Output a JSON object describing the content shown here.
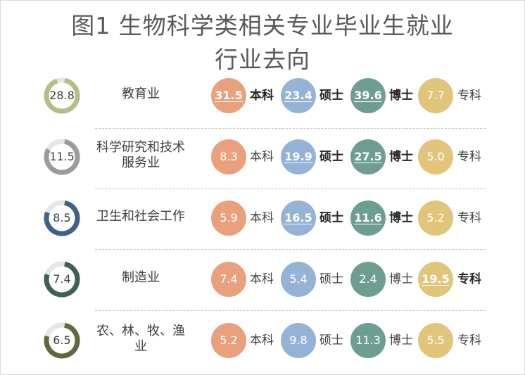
{
  "title_line1": "图1 生物科学类相关专业毕业生就业",
  "title_line2": "行业去向",
  "chart_data": {
    "type": "table",
    "title": "图1 生物科学类相关专业毕业生就业行业去向",
    "degree_labels": [
      "本科",
      "硕士",
      "博士",
      "专科"
    ],
    "degree_colors": [
      "#e8a17c",
      "#95b3d6",
      "#6e9e91",
      "#e0c57a"
    ],
    "rows": [
      {
        "industry": "教育业",
        "overall": 28.8,
        "ring_color": "#b4bf86",
        "values": [
          31.5,
          23.4,
          39.6,
          7.7
        ],
        "highlight": [
          true,
          true,
          true,
          false
        ]
      },
      {
        "industry": "科学研究和技术服务业",
        "overall": 11.5,
        "ring_color": "#9e9a9c",
        "values": [
          8.3,
          19.9,
          27.5,
          5.0
        ],
        "highlight": [
          false,
          true,
          true,
          false
        ]
      },
      {
        "industry": "卫生和社会工作",
        "overall": 8.5,
        "ring_color": "#416287",
        "values": [
          5.9,
          16.5,
          11.6,
          5.2
        ],
        "highlight": [
          false,
          true,
          true,
          false
        ]
      },
      {
        "industry": "制造业",
        "overall": 7.4,
        "ring_color": "#3f5f58",
        "values": [
          7.4,
          5.4,
          2.4,
          19.5
        ],
        "highlight": [
          false,
          false,
          false,
          true
        ]
      },
      {
        "industry": "农、林、牧、渔业",
        "overall": 6.5,
        "ring_color": "#626a3a",
        "values": [
          5.2,
          9.8,
          11.3,
          5.5
        ],
        "highlight": [
          false,
          false,
          false,
          false
        ]
      }
    ]
  }
}
